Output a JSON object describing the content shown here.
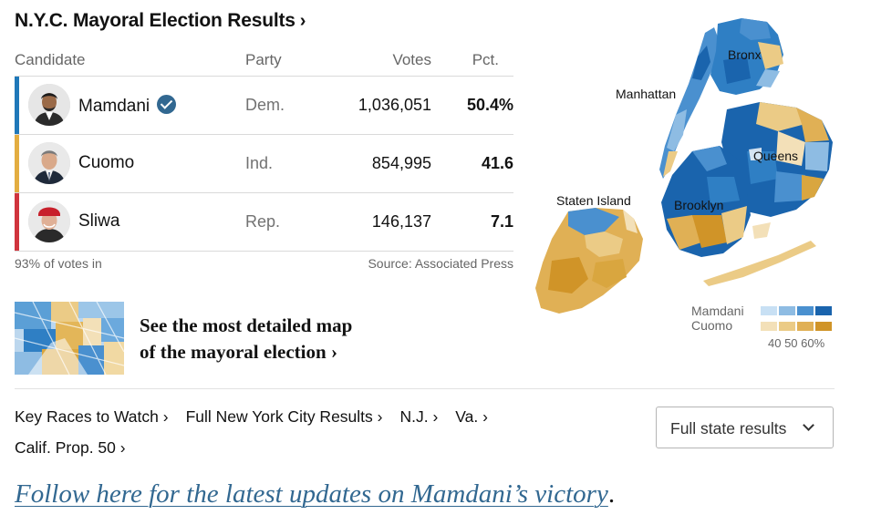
{
  "header": {
    "title": "N.Y.C. Mayoral Election Results",
    "title_chevron": "›"
  },
  "table": {
    "columns": {
      "candidate": "Candidate",
      "party": "Party",
      "votes": "Votes",
      "pct": "Pct."
    },
    "rows": [
      {
        "name": "Mamdani",
        "party": "Dem.",
        "votes": "1,036,051",
        "pct": "50.4%",
        "color": "#1f78b9",
        "winner": true
      },
      {
        "name": "Cuomo",
        "party": "Ind.",
        "votes": "854,995",
        "pct": "41.6",
        "color": "#e3ad41",
        "winner": false
      },
      {
        "name": "Sliwa",
        "party": "Rep.",
        "votes": "146,137",
        "pct": "7.1",
        "color": "#d0343d",
        "winner": false
      }
    ],
    "reporting": "93% of votes in",
    "source": "Source: Associated Press"
  },
  "promo": {
    "line1": "See the most detailed map",
    "line2": "of the mayoral election ›"
  },
  "links": [
    "Key Races to Watch ›",
    "Full New York City Results ›",
    "N.J. ›",
    "Va. ›",
    "Calif. Prop. 50 ›"
  ],
  "state_button": {
    "label": "Full state results",
    "icon": "chevron-down-icon"
  },
  "follow": {
    "text": "Follow here for the latest updates on Mamdani’s victory",
    "period": "."
  },
  "map": {
    "labels": {
      "bronx": "Bronx",
      "manhattan": "Manhattan",
      "queens": "Queens",
      "staten_island": "Staten Island",
      "brooklyn": "Brooklyn"
    }
  },
  "legend": {
    "mamdani": "Mamdani",
    "cuomo": "Cuomo",
    "ticks": "40 50 60%",
    "mamdani_colors": [
      "#c8e0f4",
      "#8ebce3",
      "#4a90cf",
      "#1a64ad"
    ],
    "cuomo_colors": [
      "#f3e0b8",
      "#ebcb86",
      "#e0b055",
      "#d09428"
    ]
  }
}
